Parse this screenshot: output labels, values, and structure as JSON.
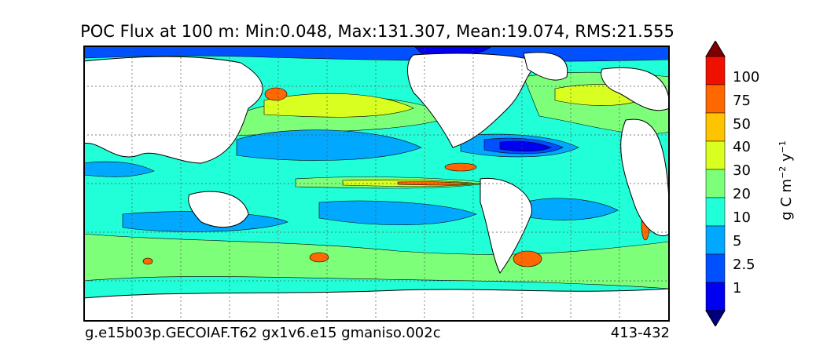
{
  "title": "POC Flux at 100 m: Min:0.048, Max:131.307, Mean:19.074, RMS:21.555",
  "footer": {
    "left": "g.e15b03p.GECOIAF.T62 gx1v6.e15 gmaniso.002c",
    "right": "413-432"
  },
  "colorbar": {
    "label_prefix": "g C m",
    "label_exp1": "−2",
    "label_mid": " y",
    "label_exp2": "−1",
    "ticks": [
      "1",
      "2.5",
      "5",
      "10",
      "20",
      "30",
      "40",
      "50",
      "75",
      "100"
    ],
    "colors": [
      "#00007f",
      "#0000f0",
      "#0050ff",
      "#00a8ff",
      "#20ffd8",
      "#7dff7a",
      "#d8ff20",
      "#ffc400",
      "#ff6800",
      "#f01000",
      "#7f0000"
    ]
  },
  "map": {
    "land_color": "#ffffff",
    "grid": true,
    "min_value": 0.048,
    "max_value": 131.307,
    "mean_value": 19.074,
    "rms_value": 21.555
  }
}
